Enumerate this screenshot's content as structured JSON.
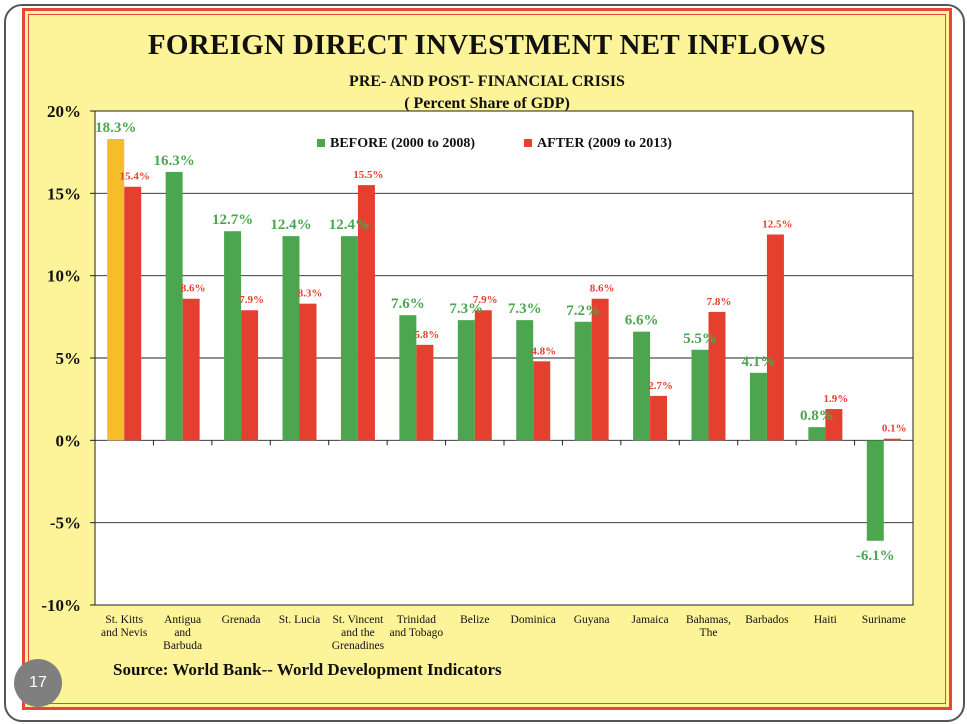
{
  "slide": {
    "title": "FOREIGN DIRECT INVESTMENT NET INFLOWS",
    "subtitle": "PRE- AND POST- FINANCIAL CRISIS",
    "subtitle2": "( Percent Share of GDP)",
    "source": "Source:  World Bank-- World Development Indicators",
    "page_number": "17"
  },
  "colors": {
    "before": "#4ca64f",
    "after": "#e5402f",
    "highlight": "#f6bd2b",
    "plot_bg": "#ffffff",
    "frame": "#e8463c",
    "background": "#fdf49a"
  },
  "chart_data": {
    "type": "bar",
    "categories": [
      [
        "St. Kitts",
        "and Nevis"
      ],
      [
        "Antigua",
        "and",
        "Barbuda"
      ],
      [
        "Grenada"
      ],
      [
        "St. Lucia"
      ],
      [
        "St. Vincent",
        "and the",
        "Grenadines"
      ],
      [
        "Trinidad",
        "and Tobago"
      ],
      [
        "Belize"
      ],
      [
        "Dominica"
      ],
      [
        "Guyana"
      ],
      [
        "Jamaica"
      ],
      [
        "Bahamas,",
        "The"
      ],
      [
        "Barbados"
      ],
      [
        "Haiti"
      ],
      [
        "Suriname"
      ]
    ],
    "series": [
      {
        "name": "BEFORE (2000 to 2008)",
        "values": [
          18.3,
          16.3,
          12.7,
          12.4,
          12.4,
          7.6,
          7.3,
          7.3,
          7.2,
          6.6,
          5.5,
          4.1,
          0.8,
          -6.1
        ],
        "labels": [
          "18.3%",
          "16.3%",
          "12.7%",
          "12.4%",
          "12.4%",
          "7.6%",
          "7.3%",
          "7.3%",
          "7.2%",
          "6.6%",
          "5.5%",
          "4.1%",
          "0.8%",
          "-6.1%"
        ]
      },
      {
        "name": "AFTER (2009 to 2013)",
        "values": [
          15.4,
          8.6,
          7.9,
          8.3,
          15.5,
          5.8,
          7.9,
          4.8,
          8.6,
          2.7,
          7.8,
          12.5,
          1.9,
          0.1
        ],
        "labels": [
          "15.4%",
          "8.6%",
          "7.9%",
          "8.3%",
          "15.5%",
          "5.8%",
          "7.9%",
          "4.8%",
          "8.6%",
          "2.7%",
          "7.8%",
          "12.5%",
          "1.9%",
          "0.1%"
        ]
      }
    ],
    "highlight_index": 0,
    "title": "FOREIGN DIRECT INVESTMENT NET INFLOWS",
    "ylim": [
      -10,
      20
    ],
    "yticks": [
      -10,
      -5,
      0,
      5,
      10,
      15,
      20
    ],
    "ytick_labels": [
      "-10%",
      "-5%",
      "0%",
      "5%",
      "10%",
      "15%",
      "20%"
    ],
    "grid": true,
    "legend": "top-center"
  }
}
